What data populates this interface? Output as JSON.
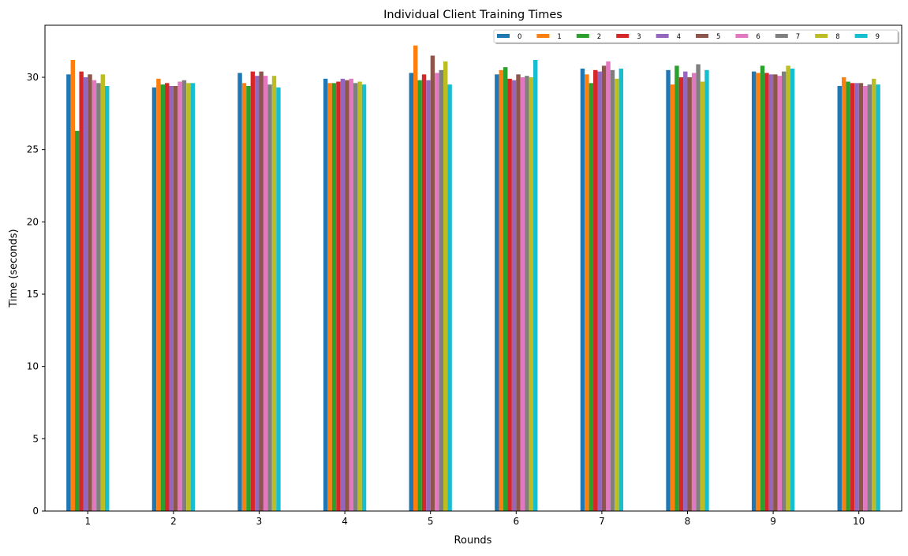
{
  "chart_data": {
    "type": "bar",
    "title": "Individual Client Training Times",
    "xlabel": "Rounds",
    "ylabel": "Time (seconds)",
    "ylim": [
      0,
      33.6
    ],
    "yticks": [
      0,
      5,
      10,
      15,
      20,
      25,
      30
    ],
    "grid": false,
    "legend_position": "top-right",
    "categories": [
      "1",
      "2",
      "3",
      "4",
      "5",
      "6",
      "7",
      "8",
      "9",
      "10"
    ],
    "series": [
      {
        "name": "0",
        "color": "#1f77b4",
        "values": [
          30.2,
          29.3,
          30.3,
          29.9,
          30.3,
          30.2,
          30.6,
          30.5,
          30.4,
          29.4
        ]
      },
      {
        "name": "1",
        "color": "#ff7f0e",
        "values": [
          31.2,
          29.9,
          29.6,
          29.6,
          32.2,
          30.5,
          30.2,
          29.5,
          30.3,
          30.0
        ]
      },
      {
        "name": "2",
        "color": "#2ca02c",
        "values": [
          26.3,
          29.5,
          29.4,
          29.6,
          29.8,
          30.7,
          29.6,
          30.8,
          30.8,
          29.7
        ]
      },
      {
        "name": "3",
        "color": "#d62728",
        "values": [
          30.4,
          29.6,
          30.4,
          29.7,
          30.2,
          29.9,
          30.5,
          30.0,
          30.3,
          29.6
        ]
      },
      {
        "name": "4",
        "color": "#9467bd",
        "values": [
          30.0,
          29.4,
          30.1,
          29.9,
          29.8,
          29.8,
          30.4,
          30.4,
          30.2,
          29.6
        ]
      },
      {
        "name": "5",
        "color": "#8c564b",
        "values": [
          30.2,
          29.4,
          30.4,
          29.8,
          31.5,
          30.2,
          30.8,
          30.0,
          30.2,
          29.6
        ]
      },
      {
        "name": "6",
        "color": "#e377c2",
        "values": [
          29.8,
          29.7,
          30.1,
          29.9,
          30.3,
          30.0,
          31.1,
          30.3,
          30.1,
          29.4
        ]
      },
      {
        "name": "7",
        "color": "#7f7f7f",
        "values": [
          29.6,
          29.8,
          29.5,
          29.6,
          30.5,
          30.1,
          30.5,
          30.9,
          30.4,
          29.5
        ]
      },
      {
        "name": "8",
        "color": "#bcbd22",
        "values": [
          30.2,
          29.6,
          30.1,
          29.7,
          31.1,
          30.0,
          29.9,
          29.7,
          30.8,
          29.9
        ]
      },
      {
        "name": "9",
        "color": "#17becf",
        "values": [
          29.4,
          29.6,
          29.3,
          29.5,
          29.5,
          31.2,
          30.6,
          30.5,
          30.6,
          29.5
        ]
      }
    ]
  }
}
